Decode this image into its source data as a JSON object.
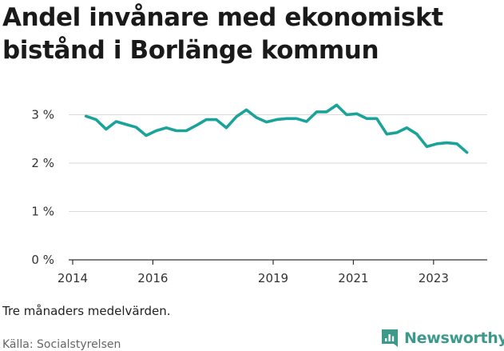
{
  "title_line1": "Andel invånare med ekonomiskt",
  "title_line2": "bistånd i Borlänge kommun",
  "note": "Tre månaders medelvärden.",
  "source": "Källa: Socialstyrelsen",
  "brand": {
    "name": "Newsworthy",
    "color": "#3d9a8b",
    "icon": "chart-document-icon"
  },
  "colors": {
    "line": "#1ba39a",
    "grid": "#d9d9d9",
    "axis": "#333333",
    "text": "#222222"
  },
  "chart_data": {
    "type": "line",
    "title": "Andel invånare med ekonomiskt bistånd i Borlänge kommun",
    "xlabel": "",
    "ylabel": "",
    "x_ticks": [
      "2014",
      "2016",
      "2019",
      "2021",
      "2023"
    ],
    "y_ticks": [
      "0 %",
      "1 %",
      "2 %",
      "3 %"
    ],
    "ylim": [
      0,
      3.3
    ],
    "grid": "horizontal",
    "legend": "none",
    "series": [
      {
        "x": [
          "2014-05",
          "2014-08",
          "2014-11",
          "2015-02",
          "2015-05",
          "2015-08",
          "2015-11",
          "2016-02",
          "2016-05",
          "2016-08",
          "2016-11",
          "2017-02",
          "2017-05",
          "2017-08",
          "2017-11",
          "2018-02",
          "2018-05",
          "2018-08",
          "2018-11",
          "2019-02",
          "2019-05",
          "2019-08",
          "2019-11",
          "2020-02",
          "2020-05",
          "2020-08",
          "2020-11",
          "2021-02",
          "2021-05",
          "2021-08",
          "2021-11",
          "2022-02",
          "2022-05",
          "2022-08",
          "2022-11",
          "2023-02",
          "2023-05",
          "2023-08",
          "2023-11"
        ],
        "values": [
          2.97,
          2.9,
          2.7,
          2.86,
          2.8,
          2.74,
          2.57,
          2.67,
          2.73,
          2.67,
          2.67,
          2.78,
          2.9,
          2.9,
          2.73,
          2.96,
          3.1,
          2.94,
          2.85,
          2.9,
          2.92,
          2.92,
          2.86,
          3.06,
          3.06,
          3.2,
          3.0,
          3.02,
          2.92,
          2.92,
          2.6,
          2.63,
          2.73,
          2.6,
          2.34,
          2.4,
          2.42,
          2.4,
          2.22
        ]
      }
    ]
  }
}
